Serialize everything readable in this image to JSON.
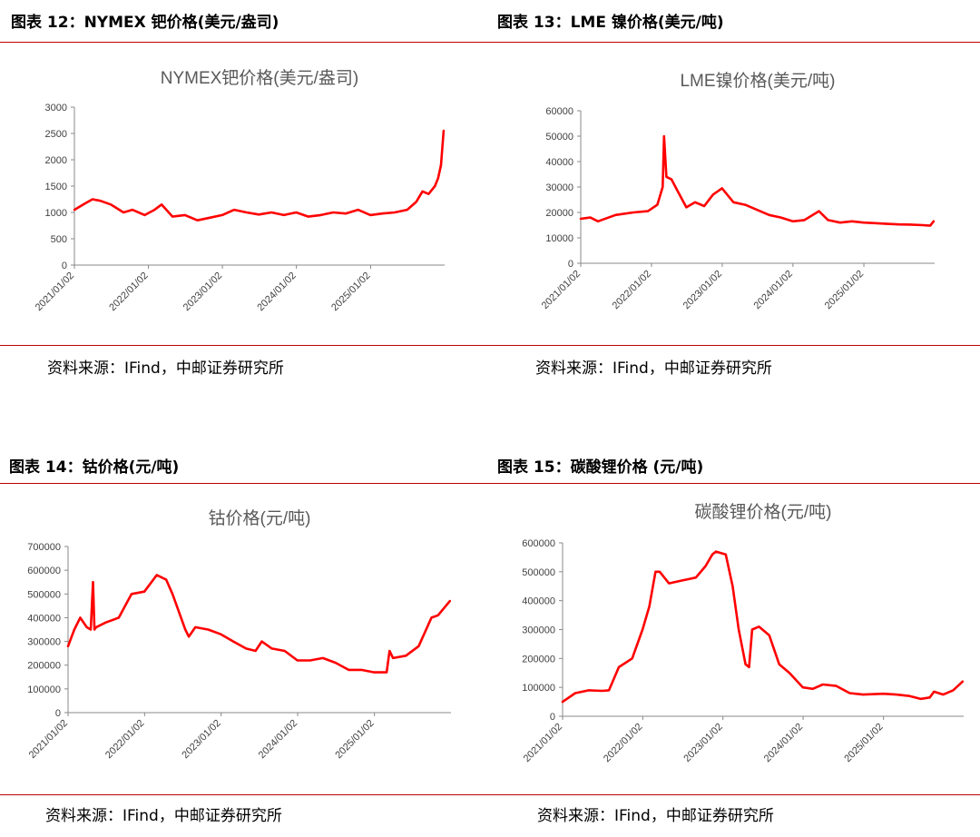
{
  "figures": [
    {
      "title": "图表 12：NYMEX 钯价格(美元/盎司)",
      "source": "资料来源：IFind，中邮证券研究所",
      "chart_data": {
        "type": "line",
        "title": "NYMEX钯价格(美元/盎司)",
        "color": "#ff0000",
        "ylim": [
          0,
          3000
        ],
        "yticks": [
          "0",
          "500",
          "1000",
          "1500",
          "2000",
          "2500",
          "3000"
        ],
        "xlim": [
          "2021/01/02",
          "2026/01/02"
        ],
        "xticks": [
          "2021/01/02",
          "2022/01/02",
          "2023/01/02",
          "2024/01/02",
          "2025/01/02"
        ],
        "series": [
          {
            "x": [
              "2021/01/02",
              "2021/02/15",
              "2021/04/01",
              "2021/05/10",
              "2021/07/01",
              "2021/09/01",
              "2021/10/15",
              "2021/12/15",
              "2022/02/01",
              "2022/03/08",
              "2022/05/01",
              "2022/07/01",
              "2022/09/01",
              "2022/11/01",
              "2023/01/01",
              "2023/03/01",
              "2023/05/01",
              "2023/07/01",
              "2023/09/01",
              "2023/11/01",
              "2024/01/01",
              "2024/03/01",
              "2024/05/01",
              "2024/07/01",
              "2024/09/01",
              "2024/11/01",
              "2025/01/01",
              "2025/03/01",
              "2025/05/01",
              "2025/07/01",
              "2025/08/15",
              "2025/09/15",
              "2025/10/15",
              "2025/11/15",
              "2025/12/01",
              "2025/12/15",
              "2025/12/28"
            ],
            "y": [
              1050,
              1150,
              1250,
              1220,
              1150,
              1000,
              1050,
              950,
              1050,
              1150,
              920,
              950,
              850,
              900,
              950,
              1050,
              1000,
              960,
              1000,
              950,
              1000,
              920,
              950,
              1000,
              980,
              1050,
              950,
              980,
              1000,
              1050,
              1200,
              1400,
              1350,
              1500,
              1650,
              1900,
              2550
            ]
          }
        ]
      }
    },
    {
      "title": "图表 13：LME 镍价格(美元/吨)",
      "source": "资料来源：IFind，中邮证券研究所",
      "chart_data": {
        "type": "line",
        "title": "LME镍价格(美元/吨)",
        "color": "#ff0000",
        "ylim": [
          0,
          60000
        ],
        "yticks": [
          "0",
          "10000",
          "20000",
          "30000",
          "40000",
          "50000",
          "60000"
        ],
        "xlim": [
          "2021/01/02",
          "2026/01/02"
        ],
        "xticks": [
          "2021/01/02",
          "2022/01/02",
          "2023/01/02",
          "2024/01/02",
          "2025/01/02"
        ],
        "series": [
          {
            "x": [
              "2021/01/02",
              "2021/02/20",
              "2021/04/01",
              "2021/07/01",
              "2021/10/01",
              "2021/12/15",
              "2022/02/01",
              "2022/03/01",
              "2022/03/08",
              "2022/03/20",
              "2022/04/15",
              "2022/05/20",
              "2022/07/01",
              "2022/08/15",
              "2022/10/01",
              "2022/11/15",
              "2023/01/01",
              "2023/03/01",
              "2023/05/01",
              "2023/07/01",
              "2023/09/01",
              "2023/11/01",
              "2024/01/01",
              "2024/03/01",
              "2024/05/15",
              "2024/07/01",
              "2024/09/01",
              "2024/11/01",
              "2025/01/01",
              "2025/03/01",
              "2025/05/01",
              "2025/07/01",
              "2025/09/01",
              "2025/11/01",
              "2025/12/10",
              "2025/12/28"
            ],
            "y": [
              17500,
              18000,
              16500,
              19000,
              20000,
              20500,
              23000,
              30000,
              50000,
              34000,
              33000,
              28000,
              22000,
              24000,
              22500,
              27000,
              29500,
              24000,
              23000,
              21000,
              19000,
              18000,
              16500,
              17000,
              20500,
              17000,
              16000,
              16500,
              16000,
              15800,
              15500,
              15300,
              15200,
              15000,
              14800,
              16500
            ]
          }
        ]
      }
    },
    {
      "title": "图表 14：钴价格(元/吨)",
      "source": "资料来源：IFind，中邮证券研究所",
      "chart_data": {
        "type": "line",
        "title": "钴价格(元/吨)",
        "color": "#ff0000",
        "ylim": [
          0,
          700000
        ],
        "yticks": [
          "0",
          "100000",
          "200000",
          "300000",
          "400000",
          "500000",
          "600000",
          "700000"
        ],
        "xlim": [
          "2021/01/02",
          "2026/01/02"
        ],
        "xticks": [
          "2021/01/02",
          "2022/01/02",
          "2023/01/02",
          "2024/01/02",
          "2025/01/02"
        ],
        "series": [
          {
            "x": [
              "2021/01/02",
              "2021/02/01",
              "2021/03/01",
              "2021/04/01",
              "2021/04/20",
              "2021/05/01",
              "2021/05/08",
              "2021/05/16",
              "2021/07/01",
              "2021/09/01",
              "2021/11/01",
              "2022/01/01",
              "2022/03/01",
              "2022/04/15",
              "2022/05/15",
              "2022/07/15",
              "2022/08/01",
              "2022/09/01",
              "2022/11/01",
              "2023/01/01",
              "2023/03/01",
              "2023/05/01",
              "2023/06/15",
              "2023/07/15",
              "2023/09/01",
              "2023/11/01",
              "2024/01/01",
              "2024/03/01",
              "2024/05/01",
              "2024/07/01",
              "2024/09/01",
              "2024/11/01",
              "2025/01/01",
              "2025/03/01",
              "2025/03/15",
              "2025/04/01",
              "2025/06/01",
              "2025/08/01",
              "2025/10/01",
              "2025/11/01",
              "2025/12/28"
            ],
            "y": [
              280000,
              350000,
              400000,
              360000,
              350000,
              550000,
              350000,
              360000,
              380000,
              400000,
              500000,
              510000,
              580000,
              560000,
              500000,
              350000,
              320000,
              360000,
              350000,
              330000,
              300000,
              270000,
              260000,
              300000,
              270000,
              260000,
              220000,
              220000,
              230000,
              210000,
              180000,
              180000,
              170000,
              170000,
              260000,
              230000,
              240000,
              280000,
              400000,
              410000,
              470000
            ]
          }
        ]
      }
    },
    {
      "title": "图表 15：碳酸锂价格 (元/吨)",
      "source": "资料来源：IFind，中邮证券研究所",
      "chart_data": {
        "type": "line",
        "title": "碳酸锂价格(元/吨)",
        "color": "#ff0000",
        "ylim": [
          0,
          600000
        ],
        "yticks": [
          "0",
          "100000",
          "200000",
          "300000",
          "400000",
          "500000",
          "600000"
        ],
        "xlim": [
          "2021/01/02",
          "2026/01/02"
        ],
        "xticks": [
          "2021/01/02",
          "2022/01/02",
          "2023/01/02",
          "2024/01/02",
          "2025/01/02"
        ],
        "series": [
          {
            "x": [
              "2021/01/02",
              "2021/03/01",
              "2021/05/01",
              "2021/07/01",
              "2021/08/01",
              "2021/09/15",
              "2021/11/15",
              "2022/01/01",
              "2022/02/01",
              "2022/03/01",
              "2022/03/20",
              "2022/05/01",
              "2022/07/01",
              "2022/09/01",
              "2022/10/15",
              "2022/11/15",
              "2022/12/01",
              "2023/01/15",
              "2023/02/15",
              "2023/03/15",
              "2023/04/15",
              "2023/05/01",
              "2023/05/15",
              "2023/06/15",
              "2023/08/01",
              "2023/09/15",
              "2023/11/01",
              "2024/01/01",
              "2024/02/15",
              "2024/04/01",
              "2024/06/01",
              "2024/08/01",
              "2024/10/01",
              "2025/01/01",
              "2025/03/01",
              "2025/05/01",
              "2025/06/20",
              "2025/08/01",
              "2025/08/20",
              "2025/10/01",
              "2025/11/15",
              "2025/12/28"
            ],
            "y": [
              50000,
              80000,
              90000,
              88000,
              90000,
              170000,
              200000,
              300000,
              380000,
              500000,
              500000,
              460000,
              470000,
              480000,
              520000,
              560000,
              570000,
              560000,
              450000,
              300000,
              180000,
              170000,
              300000,
              310000,
              280000,
              180000,
              150000,
              100000,
              95000,
              110000,
              105000,
              80000,
              75000,
              78000,
              75000,
              70000,
              60000,
              65000,
              85000,
              75000,
              90000,
              120000
            ]
          }
        ]
      }
    }
  ]
}
